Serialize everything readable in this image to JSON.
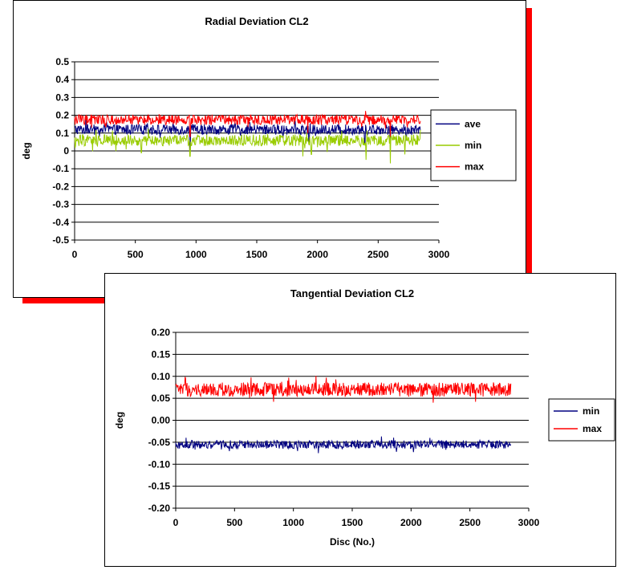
{
  "colors": {
    "shadow": "#ff0000",
    "navy": "#000080",
    "green": "#99cc00",
    "red": "#ff0000"
  },
  "chart_data": [
    {
      "type": "line",
      "title": "Radial Deviation CL2",
      "xlabel": "",
      "ylabel": "deg",
      "xlim": [
        0,
        3000
      ],
      "ylim": [
        -0.5,
        0.5
      ],
      "xticks": [
        "0",
        "500",
        "1000",
        "1500",
        "2000",
        "2500",
        "3000"
      ],
      "yticks": [
        "0.5",
        "0.4",
        "0.3",
        "0.2",
        "0.1",
        "0",
        "-0.1",
        "-0.2",
        "-0.3",
        "-0.4",
        "-0.5"
      ],
      "grid": true,
      "legend_position": "right",
      "n_points": 2850,
      "series": [
        {
          "name": "ave",
          "color": "#000080",
          "level": 0.12,
          "noise": 0.018,
          "dips": [
            [
              950,
              0.0
            ],
            [
              1930,
              0.05
            ],
            [
              2390,
              0.04
            ],
            [
              2600,
              0.03
            ],
            [
              2730,
              0.06
            ]
          ]
        },
        {
          "name": "min",
          "color": "#99cc00",
          "level": 0.06,
          "noise": 0.02,
          "dips": [
            [
              550,
              -0.01
            ],
            [
              950,
              -0.03
            ],
            [
              1880,
              -0.03
            ],
            [
              1950,
              -0.02
            ],
            [
              2400,
              -0.05
            ],
            [
              2600,
              -0.07
            ],
            [
              2720,
              -0.02
            ]
          ]
        },
        {
          "name": "max",
          "color": "#ff0000",
          "level": 0.175,
          "noise": 0.018,
          "dips": [
            [
              950,
              0.08
            ],
            [
              1920,
              0.1
            ],
            [
              2600,
              0.08
            ]
          ]
        }
      ]
    },
    {
      "type": "line",
      "title": "Tangential Deviation CL2",
      "xlabel": "Disc (No.)",
      "ylabel": "deg",
      "xlim": [
        0,
        3000
      ],
      "ylim": [
        -0.2,
        0.2
      ],
      "xticks": [
        "0",
        "500",
        "1000",
        "1500",
        "2000",
        "2500",
        "3000"
      ],
      "yticks": [
        "0.20",
        "0.15",
        "0.10",
        "0.05",
        "0.00",
        "-0.05",
        "-0.10",
        "-0.15",
        "-0.20"
      ],
      "grid": true,
      "legend_position": "right",
      "n_points": 2850,
      "series": [
        {
          "name": "min",
          "color": "#000080",
          "level": -0.055,
          "noise": 0.006,
          "dips": []
        },
        {
          "name": "max",
          "color": "#ff0000",
          "level": 0.07,
          "noise": 0.01,
          "dips": []
        }
      ]
    }
  ]
}
